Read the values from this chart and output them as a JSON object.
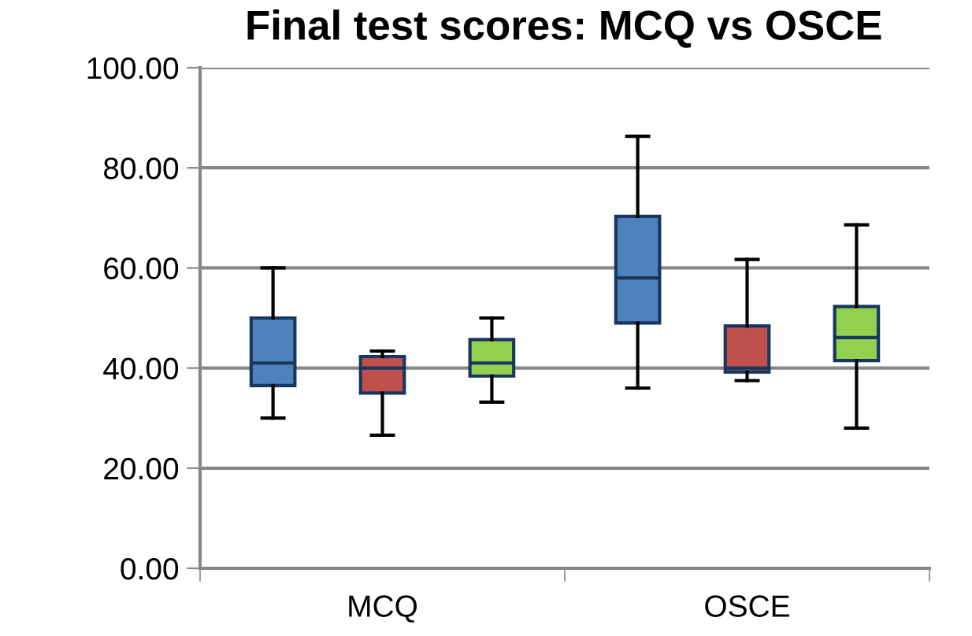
{
  "chart_data": {
    "type": "box",
    "title": "Final test scores: MCQ vs OSCE",
    "categories": [
      "MCQ",
      "OSCE"
    ],
    "ylim": [
      0,
      100
    ],
    "yticks": [
      {
        "value": 0,
        "label": "0.00"
      },
      {
        "value": 20,
        "label": "20.00"
      },
      {
        "value": 40,
        "label": "40.00"
      },
      {
        "value": 60,
        "label": "60.00"
      },
      {
        "value": 80,
        "label": "80.00"
      },
      {
        "value": 100,
        "label": "100.00"
      }
    ],
    "grid": "y",
    "series": [
      {
        "color": "#4f81bd",
        "boxes": [
          {
            "low": 30,
            "q1": 36.5,
            "median": 41,
            "q3": 50,
            "high": 60
          },
          {
            "low": 36,
            "q1": 49,
            "median": 58,
            "q3": 70.3,
            "high": 86.3
          }
        ]
      },
      {
        "color": "#c0504d",
        "boxes": [
          {
            "low": 26.6,
            "q1": 35,
            "median": 40,
            "q3": 42.3,
            "high": 43.4
          },
          {
            "low": 37.5,
            "q1": 39.2,
            "median": 40,
            "q3": 48.4,
            "high": 61.7
          }
        ]
      },
      {
        "color": "#92d050",
        "boxes": [
          {
            "low": 33.2,
            "q1": 38.4,
            "median": 41,
            "q3": 45.7,
            "high": 50
          },
          {
            "low": 28,
            "q1": 41.5,
            "median": 46.1,
            "q3": 52.3,
            "high": 68.6
          }
        ]
      }
    ]
  }
}
